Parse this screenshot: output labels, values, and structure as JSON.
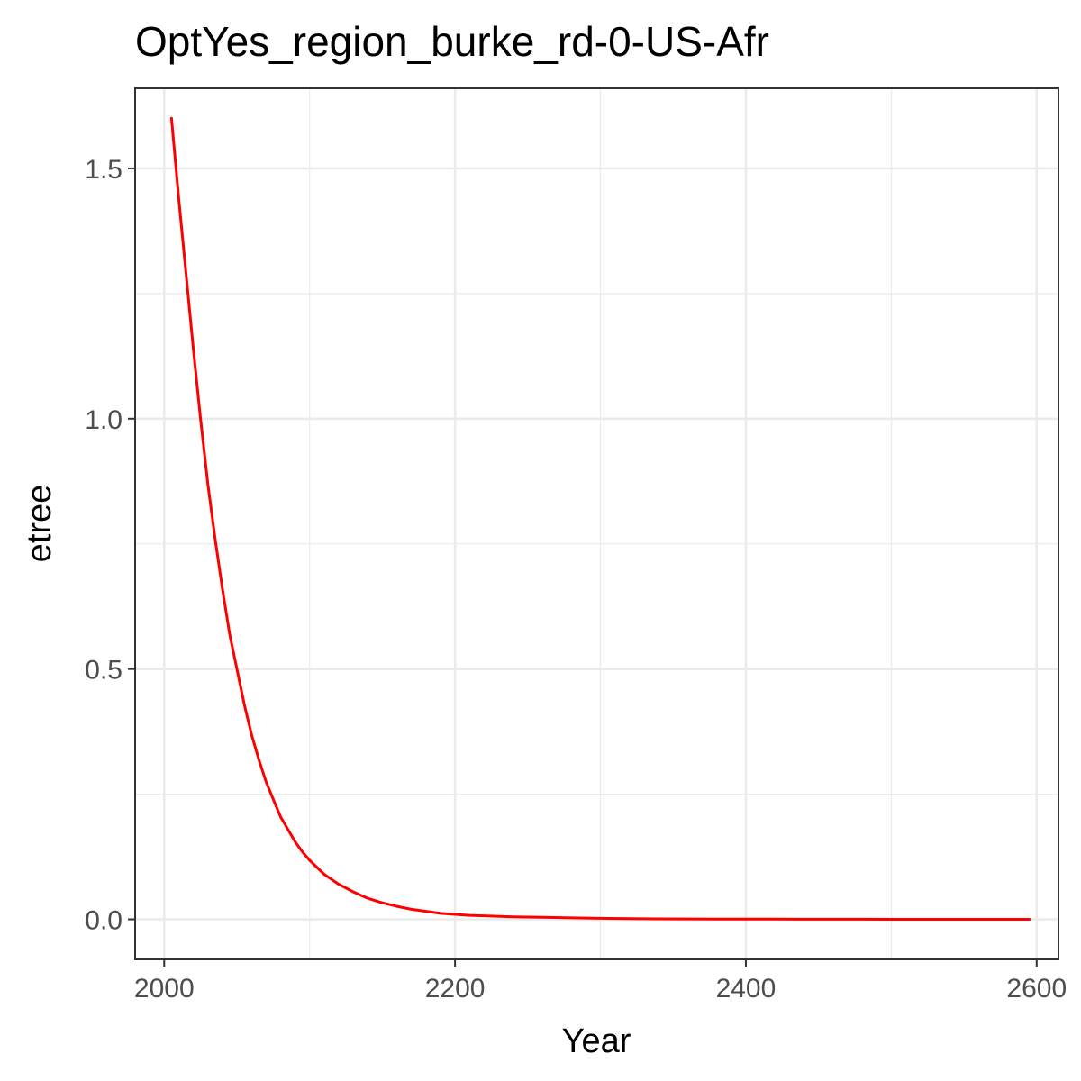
{
  "chart_data": {
    "type": "line",
    "title": "OptYes_region_burke_rd-0-US-Afr",
    "xlabel": "Year",
    "ylabel": "etree",
    "xlim": [
      1980,
      2615
    ],
    "ylim": [
      -0.08,
      1.66
    ],
    "x_ticks": [
      2000,
      2200,
      2400,
      2600
    ],
    "x_tick_labels": [
      "2000",
      "2200",
      "2400",
      "2600"
    ],
    "x_minor_ticks": [
      2100,
      2300,
      2500
    ],
    "y_ticks": [
      0.0,
      0.5,
      1.0,
      1.5
    ],
    "y_tick_labels": [
      "0.0",
      "0.5",
      "1.0",
      "1.5"
    ],
    "y_minor_ticks": [
      0.25,
      0.75,
      1.25
    ],
    "grid": true,
    "legend": "none",
    "series": [
      {
        "color": "#ff0000",
        "x": [
          2005,
          2010,
          2015,
          2020,
          2025,
          2030,
          2035,
          2040,
          2045,
          2050,
          2055,
          2060,
          2065,
          2070,
          2075,
          2080,
          2085,
          2090,
          2095,
          2100,
          2110,
          2120,
          2130,
          2140,
          2150,
          2160,
          2170,
          2180,
          2190,
          2200,
          2210,
          2220,
          2240,
          2260,
          2280,
          2300,
          2320,
          2340,
          2360,
          2380,
          2400,
          2420,
          2440,
          2460,
          2480,
          2500,
          2520,
          2540,
          2560,
          2580,
          2595
        ],
        "y": [
          1.6,
          1.44,
          1.29,
          1.14,
          1.0,
          0.87,
          0.76,
          0.66,
          0.57,
          0.5,
          0.43,
          0.37,
          0.32,
          0.275,
          0.24,
          0.205,
          0.18,
          0.155,
          0.135,
          0.118,
          0.09,
          0.07,
          0.055,
          0.042,
          0.033,
          0.026,
          0.02,
          0.016,
          0.012,
          0.01,
          0.008,
          0.007,
          0.005,
          0.004,
          0.003,
          0.002,
          0.0015,
          0.001,
          0.0008,
          0.0006,
          0.0005,
          0.0004,
          0.0003,
          0.0002,
          0.0002,
          0.0001,
          0.0001,
          0.0001,
          0.0,
          0.0,
          0.0
        ]
      }
    ]
  }
}
